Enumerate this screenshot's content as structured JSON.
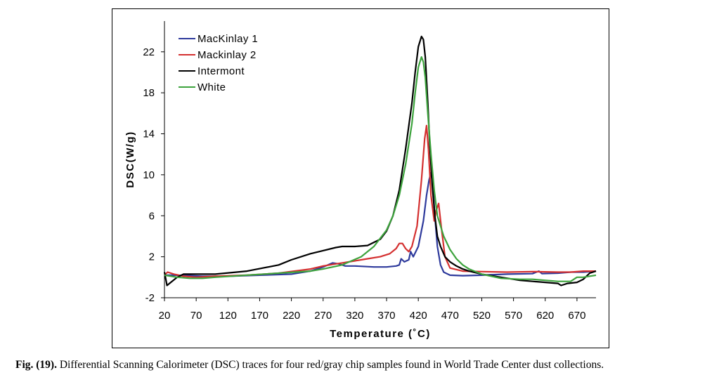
{
  "caption": {
    "label": "Fig. (19).",
    "text": "Differential Scanning Calorimeter (DSC) traces for four red/gray chip samples found in World Trade Center dust collections."
  },
  "chart_data": {
    "type": "line",
    "title": "",
    "xlabel": "Temperature (˚C)",
    "ylabel": "DSC(W/g)",
    "xlim": [
      20,
      700
    ],
    "ylim": [
      -2,
      25
    ],
    "xticks": [
      20,
      70,
      120,
      170,
      220,
      270,
      320,
      370,
      420,
      470,
      520,
      570,
      620,
      670
    ],
    "yticks": [
      -2,
      2,
      6,
      10,
      14,
      18,
      22
    ],
    "legend_position": "top-left",
    "grid": false,
    "series": [
      {
        "name": "MacKinlay 1",
        "color": "#2e3a9c",
        "x": [
          20,
          40,
          60,
          80,
          120,
          170,
          220,
          250,
          270,
          285,
          295,
          305,
          320,
          350,
          370,
          385,
          390,
          393,
          398,
          405,
          408,
          412,
          420,
          428,
          433,
          437,
          440,
          443,
          446,
          450,
          455,
          460,
          470,
          490,
          520,
          560,
          600,
          610,
          615,
          640,
          660,
          680,
          700
        ],
        "y": [
          0.2,
          0.2,
          0.15,
          0.1,
          0.1,
          0.2,
          0.3,
          0.6,
          1.0,
          1.4,
          1.3,
          1.1,
          1.1,
          1.0,
          1.0,
          1.1,
          1.2,
          1.8,
          1.5,
          1.7,
          2.5,
          2.0,
          3.0,
          5.5,
          8.0,
          9.5,
          10.2,
          9.0,
          6.0,
          3.0,
          1.2,
          0.5,
          0.2,
          0.15,
          0.2,
          0.3,
          0.35,
          0.6,
          0.35,
          0.4,
          0.5,
          0.5,
          0.6
        ]
      },
      {
        "name": "Mackinlay 2",
        "color": "#d43030",
        "x": [
          20,
          25,
          35,
          50,
          70,
          100,
          150,
          200,
          250,
          270,
          290,
          300,
          320,
          340,
          360,
          375,
          385,
          390,
          395,
          400,
          405,
          410,
          418,
          425,
          430,
          433,
          436,
          440,
          445,
          448,
          452,
          456,
          462,
          470,
          490,
          520,
          560,
          600,
          640,
          660,
          680,
          700
        ],
        "y": [
          0.2,
          0.5,
          0.3,
          0.1,
          0.0,
          0.1,
          0.2,
          0.4,
          0.8,
          1.1,
          1.3,
          1.4,
          1.6,
          1.8,
          2.0,
          2.3,
          2.8,
          3.3,
          3.3,
          2.8,
          2.5,
          3.0,
          5.0,
          9.5,
          13.5,
          14.8,
          12.5,
          8.0,
          5.5,
          6.5,
          7.2,
          5.0,
          2.0,
          0.9,
          0.6,
          0.55,
          0.5,
          0.55,
          0.5,
          0.5,
          0.6,
          0.6
        ]
      },
      {
        "name": "Intermont",
        "color": "#000000",
        "x": [
          20,
          24,
          30,
          40,
          50,
          60,
          80,
          100,
          150,
          200,
          220,
          250,
          270,
          290,
          300,
          320,
          340,
          360,
          370,
          380,
          390,
          400,
          410,
          415,
          420,
          425,
          428,
          431,
          435,
          438,
          442,
          446,
          450,
          455,
          462,
          470,
          480,
          490,
          500,
          520,
          550,
          580,
          600,
          620,
          640,
          645,
          655,
          670,
          680,
          690,
          700
        ],
        "y": [
          0.5,
          -0.8,
          -0.5,
          0.0,
          0.3,
          0.3,
          0.3,
          0.3,
          0.6,
          1.2,
          1.7,
          2.3,
          2.6,
          2.9,
          3.0,
          3.0,
          3.1,
          3.7,
          4.5,
          6.0,
          8.5,
          12.5,
          17.0,
          20.0,
          22.5,
          23.5,
          23.2,
          21.5,
          17.0,
          13.0,
          9.0,
          6.0,
          4.0,
          3.0,
          2.0,
          1.5,
          1.1,
          0.8,
          0.6,
          0.3,
          0.0,
          -0.3,
          -0.4,
          -0.5,
          -0.6,
          -0.8,
          -0.6,
          -0.5,
          -0.2,
          0.4,
          0.6
        ]
      },
      {
        "name": "White",
        "color": "#3da33d",
        "x": [
          20,
          40,
          60,
          80,
          100,
          150,
          200,
          250,
          270,
          300,
          330,
          350,
          370,
          380,
          390,
          400,
          410,
          415,
          420,
          425,
          428,
          431,
          435,
          440,
          445,
          450,
          460,
          470,
          480,
          490,
          500,
          520,
          550,
          580,
          600,
          620,
          640,
          660,
          670,
          680,
          700
        ],
        "y": [
          0.2,
          0.0,
          -0.1,
          -0.1,
          0.0,
          0.2,
          0.4,
          0.6,
          0.8,
          1.2,
          2.0,
          3.0,
          4.6,
          6.0,
          8.0,
          11.0,
          15.0,
          18.0,
          20.5,
          21.5,
          21.0,
          19.5,
          16.0,
          12.0,
          8.5,
          6.0,
          4.0,
          2.7,
          1.8,
          1.2,
          0.8,
          0.3,
          -0.1,
          -0.2,
          -0.2,
          -0.3,
          -0.4,
          -0.4,
          0.0,
          0.0,
          0.2
        ]
      }
    ]
  }
}
